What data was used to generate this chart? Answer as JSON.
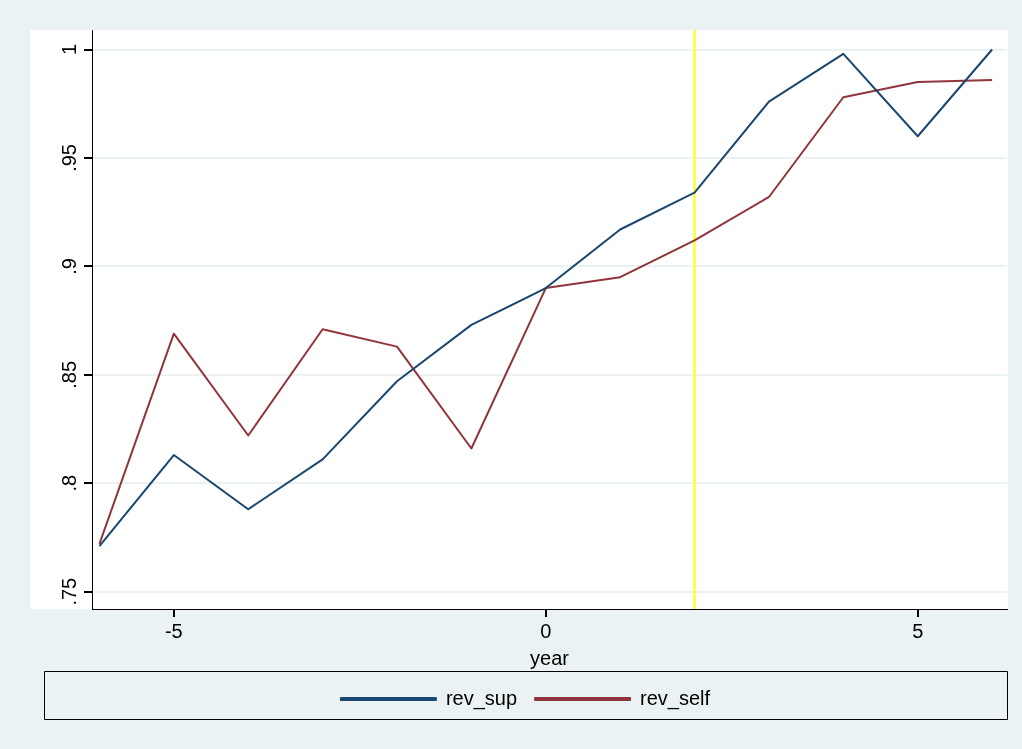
{
  "chart_data": {
    "type": "line",
    "xlabel": "year",
    "x": [
      -6,
      -5,
      -4,
      -3,
      -2,
      -1,
      0,
      1,
      2,
      3,
      4,
      5,
      6
    ],
    "series": [
      {
        "name": "rev_sup",
        "color": "#1a476f",
        "values": [
          0.771,
          0.813,
          0.788,
          0.811,
          0.847,
          0.873,
          0.89,
          0.917,
          0.934,
          0.976,
          0.998,
          0.96,
          1.0
        ]
      },
      {
        "name": "rev_self",
        "color": "#90353b",
        "values": [
          0.772,
          0.869,
          0.822,
          0.871,
          0.863,
          0.816,
          0.89,
          0.895,
          0.912,
          0.932,
          0.978,
          0.985,
          0.986
        ]
      }
    ],
    "xlim": [
      -6.1,
      6.2
    ],
    "xticks": [
      -5,
      0,
      5
    ],
    "ylim": [
      0.742,
      1.009
    ],
    "yticks": [
      {
        "value": 0.75,
        "label": ".75"
      },
      {
        "value": 0.8,
        "label": ".8"
      },
      {
        "value": 0.85,
        "label": ".85"
      },
      {
        "value": 0.9,
        "label": ".9"
      },
      {
        "value": 0.95,
        "label": ".95"
      },
      {
        "value": 1,
        "label": "1"
      }
    ],
    "ref_lines": [
      {
        "axis": "x",
        "value": 2,
        "color": "#ffff00"
      }
    ],
    "grid": "y",
    "legend": "bottom",
    "marker": "none",
    "line_style": "solid"
  }
}
